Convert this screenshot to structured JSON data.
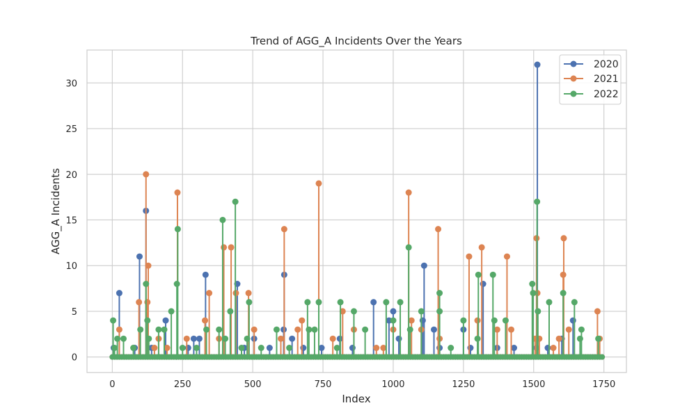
{
  "chart_data": {
    "type": "line",
    "title": "Trend of AGG_A Incidents Over the Years",
    "xlabel": "Index",
    "ylabel": "AGG_A Incidents",
    "xlim": [
      -90,
      1830
    ],
    "ylim": [
      -1.7,
      33.6
    ],
    "x_ticks": [
      0,
      250,
      500,
      750,
      1000,
      1250,
      1500,
      1750
    ],
    "y_ticks": [
      0,
      5,
      10,
      15,
      20,
      25,
      30
    ],
    "grid": true,
    "legend_position": "top-right",
    "index_max": 1745,
    "baseline_value": 0,
    "series": [
      {
        "name": "2020",
        "color": "#4c72b0",
        "points": [
          [
            5,
            1
          ],
          [
            25,
            7
          ],
          [
            80,
            1
          ],
          [
            97,
            11
          ],
          [
            120,
            16
          ],
          [
            140,
            1
          ],
          [
            190,
            4
          ],
          [
            270,
            1
          ],
          [
            290,
            2
          ],
          [
            310,
            2
          ],
          [
            332,
            9
          ],
          [
            445,
            8
          ],
          [
            470,
            1
          ],
          [
            505,
            2
          ],
          [
            560,
            1
          ],
          [
            610,
            3
          ],
          [
            612,
            9
          ],
          [
            640,
            2
          ],
          [
            680,
            1
          ],
          [
            745,
            1
          ],
          [
            810,
            2
          ],
          [
            855,
            1
          ],
          [
            930,
            6
          ],
          [
            985,
            4
          ],
          [
            1000,
            5
          ],
          [
            1020,
            2
          ],
          [
            1105,
            4
          ],
          [
            1110,
            10
          ],
          [
            1145,
            3
          ],
          [
            1165,
            1
          ],
          [
            1250,
            3
          ],
          [
            1275,
            1
          ],
          [
            1320,
            8
          ],
          [
            1370,
            1
          ],
          [
            1430,
            1
          ],
          [
            1510,
            1
          ],
          [
            1513,
            32
          ],
          [
            1550,
            1
          ],
          [
            1600,
            2
          ],
          [
            1640,
            4
          ]
        ]
      },
      {
        "name": "2021",
        "color": "#dd8452",
        "points": [
          [
            25,
            3
          ],
          [
            95,
            6
          ],
          [
            120,
            20
          ],
          [
            125,
            6
          ],
          [
            128,
            10
          ],
          [
            150,
            1
          ],
          [
            165,
            2
          ],
          [
            195,
            1
          ],
          [
            232,
            18
          ],
          [
            265,
            2
          ],
          [
            330,
            4
          ],
          [
            345,
            7
          ],
          [
            380,
            2
          ],
          [
            397,
            12
          ],
          [
            423,
            12
          ],
          [
            440,
            7
          ],
          [
            485,
            7
          ],
          [
            505,
            3
          ],
          [
            600,
            2
          ],
          [
            612,
            14
          ],
          [
            660,
            3
          ],
          [
            675,
            4
          ],
          [
            735,
            19
          ],
          [
            785,
            2
          ],
          [
            820,
            5
          ],
          [
            860,
            3
          ],
          [
            940,
            1
          ],
          [
            965,
            1
          ],
          [
            1000,
            3
          ],
          [
            1055,
            18
          ],
          [
            1065,
            4
          ],
          [
            1100,
            3
          ],
          [
            1160,
            14
          ],
          [
            1165,
            2
          ],
          [
            1270,
            11
          ],
          [
            1300,
            4
          ],
          [
            1315,
            12
          ],
          [
            1370,
            3
          ],
          [
            1405,
            11
          ],
          [
            1420,
            3
          ],
          [
            1505,
            2
          ],
          [
            1510,
            13
          ],
          [
            1513,
            7
          ],
          [
            1520,
            2
          ],
          [
            1570,
            1
          ],
          [
            1590,
            2
          ],
          [
            1605,
            9
          ],
          [
            1607,
            13
          ],
          [
            1625,
            3
          ],
          [
            1727,
            5
          ],
          [
            1735,
            2
          ]
        ]
      },
      {
        "name": "2022",
        "color": "#55a868",
        "points": [
          [
            3,
            4
          ],
          [
            8,
            1
          ],
          [
            18,
            2
          ],
          [
            40,
            2
          ],
          [
            75,
            1
          ],
          [
            100,
            3
          ],
          [
            120,
            8
          ],
          [
            125,
            4
          ],
          [
            130,
            2
          ],
          [
            165,
            3
          ],
          [
            185,
            3
          ],
          [
            210,
            5
          ],
          [
            230,
            8
          ],
          [
            233,
            14
          ],
          [
            250,
            1
          ],
          [
            300,
            1
          ],
          [
            335,
            3
          ],
          [
            380,
            3
          ],
          [
            393,
            15
          ],
          [
            402,
            2
          ],
          [
            420,
            5
          ],
          [
            438,
            17
          ],
          [
            460,
            1
          ],
          [
            480,
            2
          ],
          [
            487,
            6
          ],
          [
            530,
            1
          ],
          [
            585,
            3
          ],
          [
            630,
            1
          ],
          [
            695,
            6
          ],
          [
            700,
            3
          ],
          [
            720,
            3
          ],
          [
            735,
            6
          ],
          [
            800,
            1
          ],
          [
            812,
            6
          ],
          [
            860,
            5
          ],
          [
            900,
            3
          ],
          [
            975,
            6
          ],
          [
            1000,
            4
          ],
          [
            1025,
            6
          ],
          [
            1055,
            12
          ],
          [
            1060,
            3
          ],
          [
            1100,
            5
          ],
          [
            1165,
            5
          ],
          [
            1165,
            7
          ],
          [
            1205,
            1
          ],
          [
            1250,
            4
          ],
          [
            1300,
            2
          ],
          [
            1303,
            9
          ],
          [
            1355,
            9
          ],
          [
            1360,
            4
          ],
          [
            1400,
            4
          ],
          [
            1495,
            8
          ],
          [
            1498,
            7
          ],
          [
            1512,
            17
          ],
          [
            1515,
            5
          ],
          [
            1555,
            6
          ],
          [
            1605,
            7
          ],
          [
            1645,
            6
          ],
          [
            1665,
            2
          ],
          [
            1670,
            3
          ],
          [
            1730,
            2
          ]
        ]
      }
    ]
  }
}
